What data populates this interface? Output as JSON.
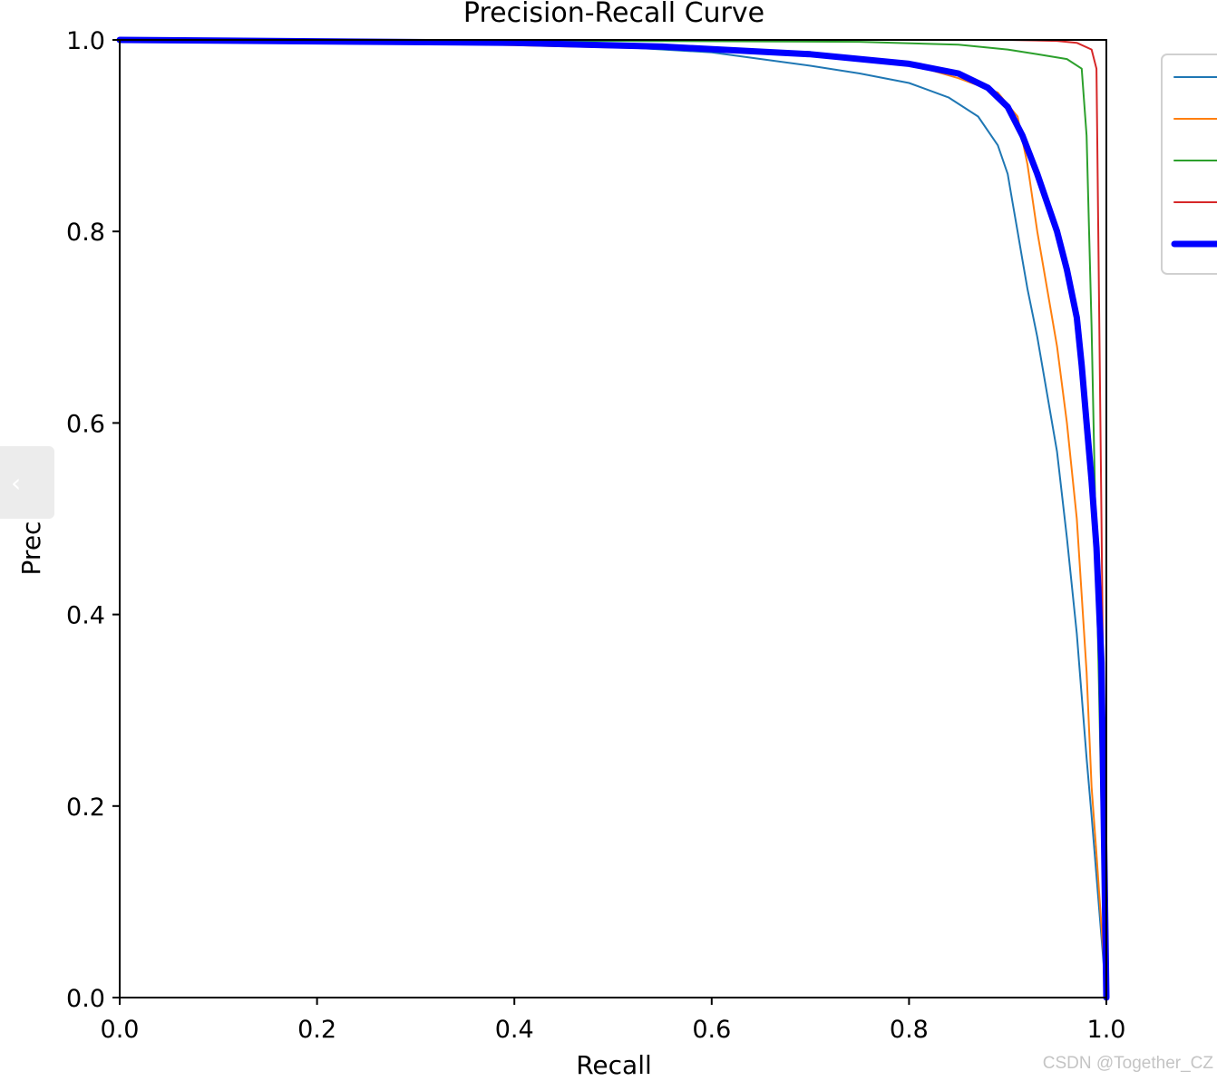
{
  "chart_data": {
    "type": "line",
    "title": "Precision-Recall Curve",
    "xlabel": "Recall",
    "ylabel": "Precision",
    "xlim": [
      0.0,
      1.0
    ],
    "ylim": [
      0.0,
      1.0
    ],
    "xticks": [
      "0.0",
      "0.2",
      "0.4",
      "0.6",
      "0.8",
      "1.0"
    ],
    "yticks": [
      "0.0",
      "0.2",
      "0.4",
      "0.6",
      "0.8",
      "1.0"
    ],
    "grid": false,
    "legend_placement": "outside-right (partially cut off, labels not visible)",
    "series": [
      {
        "color": "#1f77b4",
        "width": 2,
        "x": [
          0.0,
          0.3,
          0.5,
          0.6,
          0.65,
          0.7,
          0.75,
          0.8,
          0.84,
          0.87,
          0.89,
          0.9,
          0.905,
          0.91,
          0.915,
          0.92,
          0.93,
          0.94,
          0.95,
          0.96,
          0.97,
          0.98,
          0.985,
          1.0
        ],
        "y": [
          1.0,
          0.997,
          0.993,
          0.987,
          0.98,
          0.973,
          0.965,
          0.955,
          0.94,
          0.92,
          0.89,
          0.86,
          0.83,
          0.8,
          0.77,
          0.74,
          0.69,
          0.63,
          0.57,
          0.48,
          0.38,
          0.25,
          0.19,
          0.0
        ]
      },
      {
        "color": "#ff7f0e",
        "width": 2,
        "x": [
          0.0,
          0.3,
          0.5,
          0.6,
          0.7,
          0.8,
          0.85,
          0.89,
          0.91,
          0.92,
          0.93,
          0.94,
          0.95,
          0.96,
          0.97,
          0.975,
          0.98,
          0.985,
          0.99,
          1.0
        ],
        "y": [
          1.0,
          0.997,
          0.992,
          0.99,
          0.985,
          0.975,
          0.96,
          0.945,
          0.92,
          0.87,
          0.8,
          0.74,
          0.68,
          0.6,
          0.5,
          0.42,
          0.34,
          0.22,
          0.15,
          0.0
        ]
      },
      {
        "color": "#2ca02c",
        "width": 2,
        "x": [
          0.0,
          0.5,
          0.75,
          0.85,
          0.9,
          0.93,
          0.96,
          0.975,
          0.98,
          0.985,
          0.99,
          0.995,
          1.0
        ],
        "y": [
          1.0,
          0.999,
          0.998,
          0.995,
          0.99,
          0.985,
          0.98,
          0.97,
          0.9,
          0.7,
          0.45,
          0.2,
          0.0
        ]
      },
      {
        "color": "#d62728",
        "width": 2,
        "x": [
          0.0,
          0.6,
          0.9,
          0.95,
          0.97,
          0.985,
          0.99,
          0.995,
          1.0
        ],
        "y": [
          1.0,
          1.0,
          1.0,
          0.999,
          0.997,
          0.99,
          0.97,
          0.5,
          0.0
        ]
      },
      {
        "color": "#0000ff",
        "width": 7,
        "x": [
          0.0,
          0.4,
          0.55,
          0.7,
          0.8,
          0.85,
          0.88,
          0.9,
          0.915,
          0.93,
          0.94,
          0.95,
          0.96,
          0.97,
          0.975,
          0.98,
          0.985,
          0.99,
          0.995,
          1.0
        ],
        "y": [
          1.0,
          0.997,
          0.993,
          0.985,
          0.975,
          0.965,
          0.95,
          0.93,
          0.9,
          0.86,
          0.83,
          0.8,
          0.76,
          0.71,
          0.66,
          0.6,
          0.54,
          0.47,
          0.35,
          0.0
        ]
      }
    ]
  },
  "watermark": "CSDN @Together_CZ",
  "side_tab": {
    "icon": "chevron-left-icon",
    "glyph": "‹"
  }
}
